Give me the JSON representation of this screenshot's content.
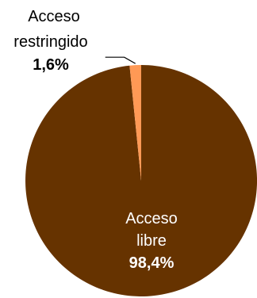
{
  "chart_data": {
    "type": "pie",
    "slices": [
      {
        "label_lines": [
          "Acceso",
          "libre"
        ],
        "value": 98.4,
        "value_label": "98,4%",
        "color": "#663300"
      },
      {
        "label_lines": [
          "Acceso",
          "restringido"
        ],
        "value": 1.6,
        "value_label": "1,6%",
        "color": "#ff9955"
      }
    ],
    "legend": "none",
    "data_labels": true
  }
}
